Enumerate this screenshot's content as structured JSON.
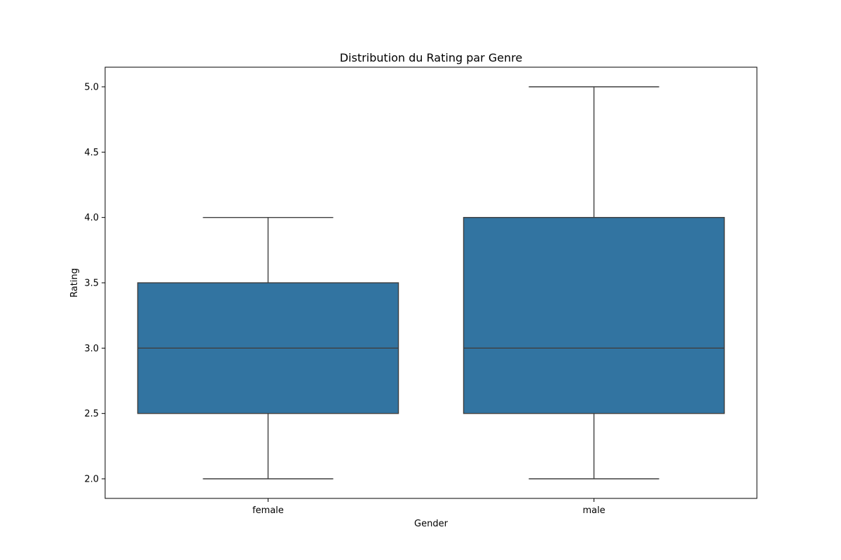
{
  "chart_data": {
    "type": "box",
    "title": "Distribution du Rating par Genre",
    "xlabel": "Gender",
    "ylabel": "Rating",
    "ylim": [
      1.85,
      5.15
    ],
    "yticks": [
      2.0,
      2.5,
      3.0,
      3.5,
      4.0,
      4.5,
      5.0
    ],
    "ytick_labels": [
      "2.0",
      "2.5",
      "3.0",
      "3.5",
      "4.0",
      "4.5",
      "5.0"
    ],
    "categories": [
      "female",
      "male"
    ],
    "boxes": [
      {
        "category": "female",
        "whisker_low": 2.0,
        "q1": 2.5,
        "median": 3.0,
        "q3": 3.5,
        "whisker_high": 4.0
      },
      {
        "category": "male",
        "whisker_low": 2.0,
        "q1": 2.5,
        "median": 3.0,
        "q3": 4.0,
        "whisker_high": 5.0
      }
    ],
    "grid": false,
    "box_color": "#3274a1",
    "line_color": "#3f3f3f"
  }
}
